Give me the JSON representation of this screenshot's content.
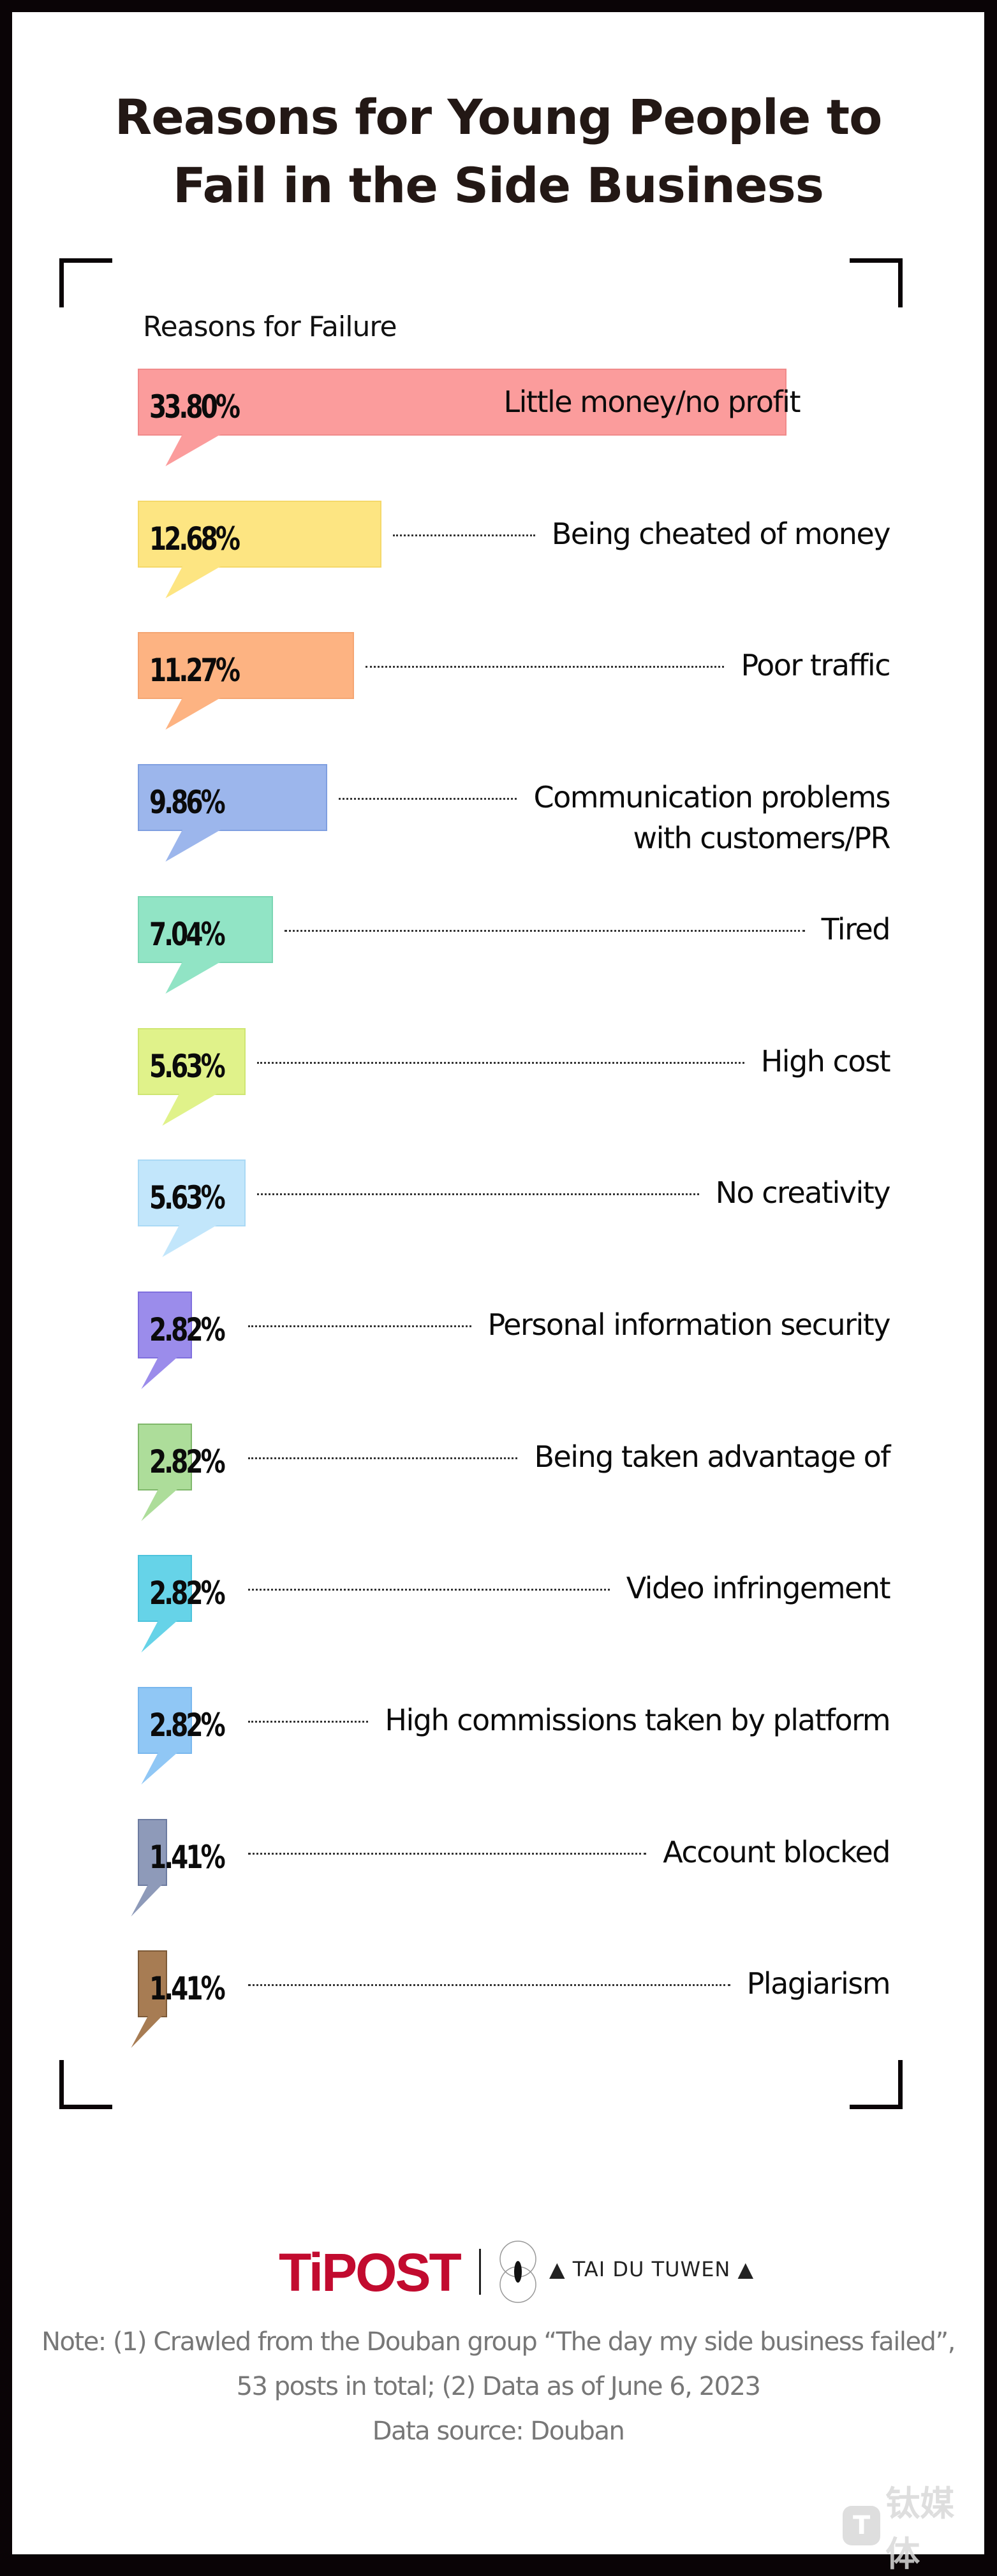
{
  "title": {
    "line1": "Reasons for Young People to",
    "line2": "Fail in the Side Business"
  },
  "axis_label": "Reasons for Failure",
  "items": [
    {
      "pct": "33.80%",
      "label": "Little money/no profit",
      "color": "#fb9c9c",
      "border": "#f08a8a"
    },
    {
      "pct": "12.68%",
      "label": "Being cheated of money",
      "color": "#fde582",
      "border": "#f5d96a"
    },
    {
      "pct": "11.27%",
      "label": "Poor traffic",
      "color": "#fdb382",
      "border": "#f5a572"
    },
    {
      "pct": "9.86%",
      "label": "Communication problems\nwith customers/PR",
      "label_line1": "Communication problems",
      "label_line2": "with customers/PR",
      "color": "#9cb6ec",
      "border": "#7f9fe0"
    },
    {
      "pct": "7.04%",
      "label": "Tired",
      "color": "#91e4c5",
      "border": "#7bd6b3"
    },
    {
      "pct": "5.63%",
      "label": "High cost",
      "color": "#e0f28a",
      "border": "#cfe672"
    },
    {
      "pct": "5.63%",
      "label": "No creativity",
      "color": "#c2e6fb",
      "border": "#a9d9f5"
    },
    {
      "pct": "2.82%",
      "label": "Personal information security",
      "color": "#9b8ceb",
      "border": "#7f6fde"
    },
    {
      "pct": "2.82%",
      "label": "Being taken advantage of",
      "color": "#addd9a",
      "border": "#7fb76a"
    },
    {
      "pct": "2.82%",
      "label": "Video infringement",
      "color": "#66d3e8",
      "border": "#4cc3dc"
    },
    {
      "pct": "2.82%",
      "label": "High commissions taken by platform",
      "color": "#90c7f5",
      "border": "#78b7ee"
    },
    {
      "pct": "1.41%",
      "label": "Account blocked",
      "color": "#8e9ab9",
      "border": "#6c7ba0"
    },
    {
      "pct": "1.41%",
      "label": "Plagiarism",
      "color": "#a77c53",
      "border": "#7d5a38"
    }
  ],
  "footer": {
    "brand": "TiPOST",
    "partner": "▲ TAI DU TUWEN ▲",
    "note_line1": "Note: (1) Crawled from the Douban group “The day my side business failed”,",
    "note_line2": "53 posts in total; (2) Data as of June 6, 2023",
    "source": "Data source: Douban",
    "watermark_badge": "T",
    "watermark_text": "钛媒体"
  },
  "chart_data": {
    "type": "bar",
    "orientation": "horizontal",
    "title": "Reasons for Young People to Fail in the Side Business",
    "xlabel": "",
    "ylabel": "Reasons for Failure",
    "categories": [
      "Little money/no profit",
      "Being cheated of money",
      "Poor traffic",
      "Communication problems with customers/PR",
      "Tired",
      "High cost",
      "No creativity",
      "Personal information security",
      "Being taken advantage of",
      "Video infringement",
      "High commissions taken by platform",
      "Account blocked",
      "Plagiarism"
    ],
    "values": [
      33.8,
      12.68,
      11.27,
      9.86,
      7.04,
      5.63,
      5.63,
      2.82,
      2.82,
      2.82,
      2.82,
      1.41,
      1.41
    ],
    "unit": "%",
    "colors": [
      "#fb9c9c",
      "#fde582",
      "#fdb382",
      "#9cb6ec",
      "#91e4c5",
      "#e0f28a",
      "#c2e6fb",
      "#9b8ceb",
      "#addd9a",
      "#66d3e8",
      "#90c7f5",
      "#8e9ab9",
      "#a77c53"
    ],
    "grid": false,
    "legend": "none",
    "notes": [
      "Note: (1) Crawled from the Douban group “The day my side business failed”, 53 posts in total; (2) Data as of June 6, 2023",
      "Data source: Douban"
    ]
  }
}
